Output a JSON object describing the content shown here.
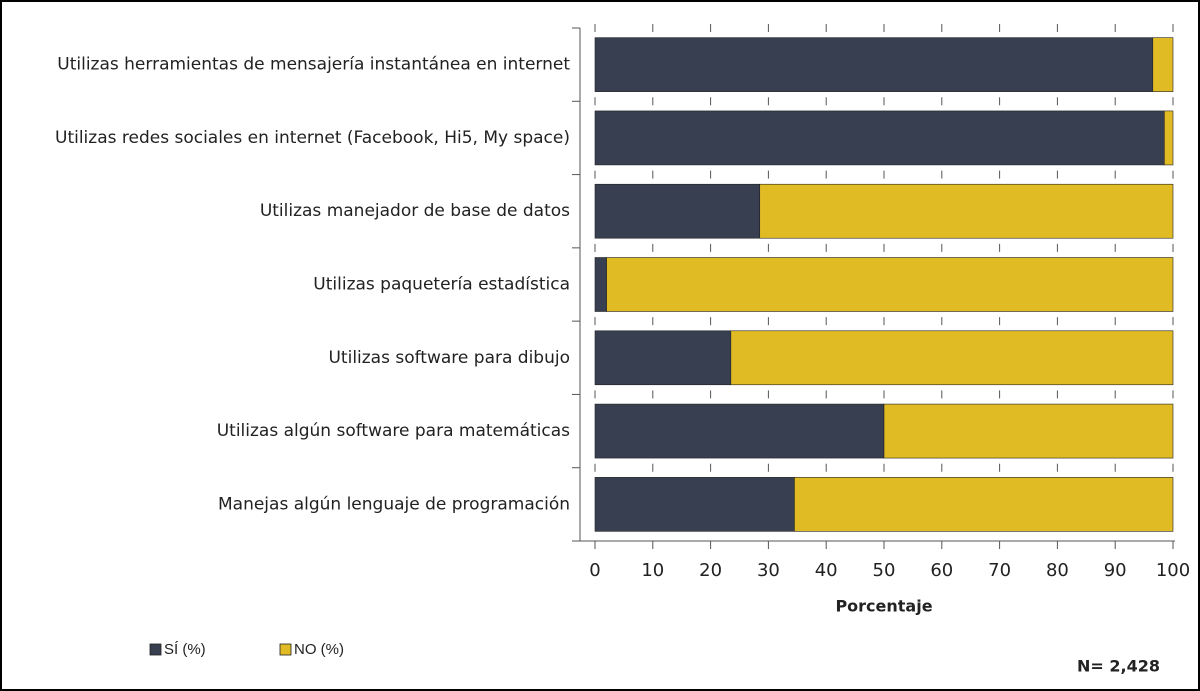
{
  "chart_data": {
    "type": "stacked_barh",
    "categories": [
      "Utilizas herramientas de mensajería instantánea en internet",
      "Utilizas redes sociales en internet (Facebook, Hi5, My space)",
      "Utilizas manejador de base de datos",
      "Utilizas paquetería estadística",
      "Utilizas software para dibujo",
      "Utilizas algún software para matemáticas",
      "Manejas algún lenguaje de programación"
    ],
    "series": [
      {
        "name": "SÍ (%)",
        "color": "#373f51",
        "values": [
          96.5,
          98.5,
          28.5,
          2,
          23.5,
          50,
          34.5
        ]
      },
      {
        "name": "NO (%)",
        "color": "#e0bb24",
        "values": [
          3.5,
          1.5,
          71.5,
          98,
          76.5,
          50,
          65.5
        ]
      }
    ],
    "xlabel": "Porcentaje",
    "xlim": [
      0,
      100
    ],
    "xticks": [
      0,
      10,
      20,
      30,
      40,
      50,
      60,
      70,
      80,
      90,
      100
    ],
    "annotation": "N= 2,428",
    "legend": "bottom-left"
  }
}
